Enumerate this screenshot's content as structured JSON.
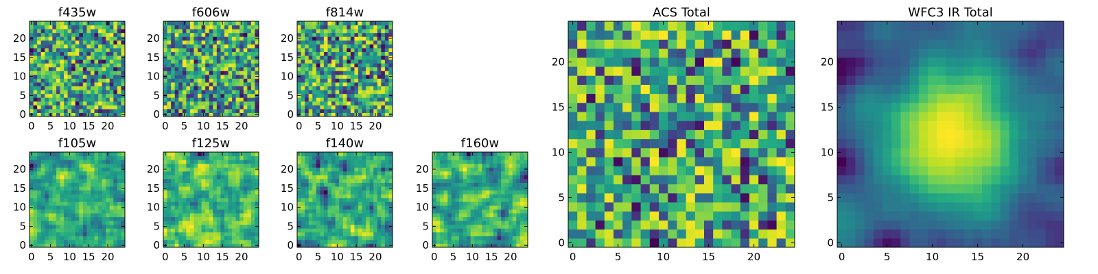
{
  "chart_data": [
    {
      "type": "heatmap",
      "title": "f435w",
      "xlabel": "",
      "ylabel": "",
      "xlim": [
        -0.5,
        24.5
      ],
      "ylim": [
        -0.5,
        24.5
      ],
      "xticks": [
        0,
        5,
        10,
        15,
        20
      ],
      "yticks": [
        0,
        5,
        10,
        15,
        20
      ],
      "xticklabels": [
        "0",
        "5",
        "10",
        "15",
        "20"
      ],
      "yticklabels": [
        "0",
        "5",
        "10",
        "15",
        "20"
      ],
      "grid_size": 25,
      "colormap": "viridis",
      "pattern": "noise",
      "seed": 101
    },
    {
      "type": "heatmap",
      "title": "f606w",
      "xlabel": "",
      "ylabel": "",
      "xlim": [
        -0.5,
        24.5
      ],
      "ylim": [
        -0.5,
        24.5
      ],
      "xticks": [
        0,
        5,
        10,
        15,
        20
      ],
      "yticks": [
        0,
        5,
        10,
        15,
        20
      ],
      "xticklabels": [
        "0",
        "5",
        "10",
        "15",
        "20"
      ],
      "yticklabels": [
        "0",
        "5",
        "10",
        "15",
        "20"
      ],
      "grid_size": 25,
      "colormap": "viridis",
      "pattern": "noise",
      "seed": 202
    },
    {
      "type": "heatmap",
      "title": "f814w",
      "xlabel": "",
      "ylabel": "",
      "xlim": [
        -0.5,
        24.5
      ],
      "ylim": [
        -0.5,
        24.5
      ],
      "xticks": [
        0,
        5,
        10,
        15,
        20
      ],
      "yticks": [
        0,
        5,
        10,
        15,
        20
      ],
      "xticklabels": [
        "0",
        "5",
        "10",
        "15",
        "20"
      ],
      "yticklabels": [
        "0",
        "5",
        "10",
        "15",
        "20"
      ],
      "grid_size": 25,
      "colormap": "viridis",
      "pattern": "noise",
      "seed": 303
    },
    {
      "type": "heatmap",
      "title": "f105w",
      "xlabel": "",
      "ylabel": "",
      "xlim": [
        -0.5,
        24.5
      ],
      "ylim": [
        -0.5,
        24.5
      ],
      "xticks": [
        0,
        5,
        10,
        15,
        20
      ],
      "yticks": [
        0,
        5,
        10,
        15,
        20
      ],
      "xticklabels": [
        "0",
        "5",
        "10",
        "15",
        "20"
      ],
      "yticklabels": [
        "0",
        "5",
        "10",
        "15",
        "20"
      ],
      "grid_size": 25,
      "colormap": "viridis",
      "pattern": "smooth",
      "seed": 404
    },
    {
      "type": "heatmap",
      "title": "f125w",
      "xlabel": "",
      "ylabel": "",
      "xlim": [
        -0.5,
        24.5
      ],
      "ylim": [
        -0.5,
        24.5
      ],
      "xticks": [
        0,
        5,
        10,
        15,
        20
      ],
      "yticks": [
        0,
        5,
        10,
        15,
        20
      ],
      "xticklabels": [
        "0",
        "5",
        "10",
        "15",
        "20"
      ],
      "yticklabels": [
        "0",
        "5",
        "10",
        "15",
        "20"
      ],
      "grid_size": 25,
      "colormap": "viridis",
      "pattern": "smooth",
      "seed": 505
    },
    {
      "type": "heatmap",
      "title": "f140w",
      "xlabel": "",
      "ylabel": "",
      "xlim": [
        -0.5,
        24.5
      ],
      "ylim": [
        -0.5,
        24.5
      ],
      "xticks": [
        0,
        5,
        10,
        15,
        20
      ],
      "yticks": [
        0,
        5,
        10,
        15,
        20
      ],
      "xticklabels": [
        "0",
        "5",
        "10",
        "15",
        "20"
      ],
      "yticklabels": [
        "0",
        "5",
        "10",
        "15",
        "20"
      ],
      "grid_size": 25,
      "colormap": "viridis",
      "pattern": "smooth",
      "seed": 606
    },
    {
      "type": "heatmap",
      "title": "f160w",
      "xlabel": "",
      "ylabel": "",
      "xlim": [
        -0.5,
        24.5
      ],
      "ylim": [
        -0.5,
        24.5
      ],
      "xticks": [
        0,
        5,
        10,
        15,
        20
      ],
      "yticks": [
        0,
        5,
        10,
        15,
        20
      ],
      "xticklabels": [
        "0",
        "5",
        "10",
        "15",
        "20"
      ],
      "yticklabels": [
        "0",
        "5",
        "10",
        "15",
        "20"
      ],
      "grid_size": 25,
      "colormap": "viridis",
      "pattern": "smooth",
      "seed": 707
    },
    {
      "type": "heatmap",
      "title": "ACS Total",
      "xlabel": "",
      "ylabel": "",
      "xlim": [
        -0.5,
        24.5
      ],
      "ylim": [
        -0.5,
        24.5
      ],
      "xticks": [
        0,
        5,
        10,
        15,
        20
      ],
      "yticks": [
        0,
        5,
        10,
        15,
        20
      ],
      "xticklabels": [
        "0",
        "5",
        "10",
        "15",
        "20"
      ],
      "yticklabels": [
        "0",
        "5",
        "10",
        "15",
        "20"
      ],
      "grid_size": 25,
      "colormap": "viridis",
      "pattern": "noise",
      "seed": 808
    },
    {
      "type": "heatmap",
      "title": "WFC3 IR Total",
      "xlabel": "",
      "ylabel": "",
      "xlim": [
        -0.5,
        24.5
      ],
      "ylim": [
        -0.5,
        24.5
      ],
      "xticks": [
        0,
        5,
        10,
        15,
        20
      ],
      "yticks": [
        0,
        5,
        10,
        15,
        20
      ],
      "xticklabels": [
        "0",
        "5",
        "10",
        "15",
        "20"
      ],
      "yticklabels": [
        "0",
        "5",
        "10",
        "15",
        "20"
      ],
      "grid_size": 25,
      "colormap": "viridis",
      "pattern": "centered-blob",
      "seed": 909
    }
  ]
}
